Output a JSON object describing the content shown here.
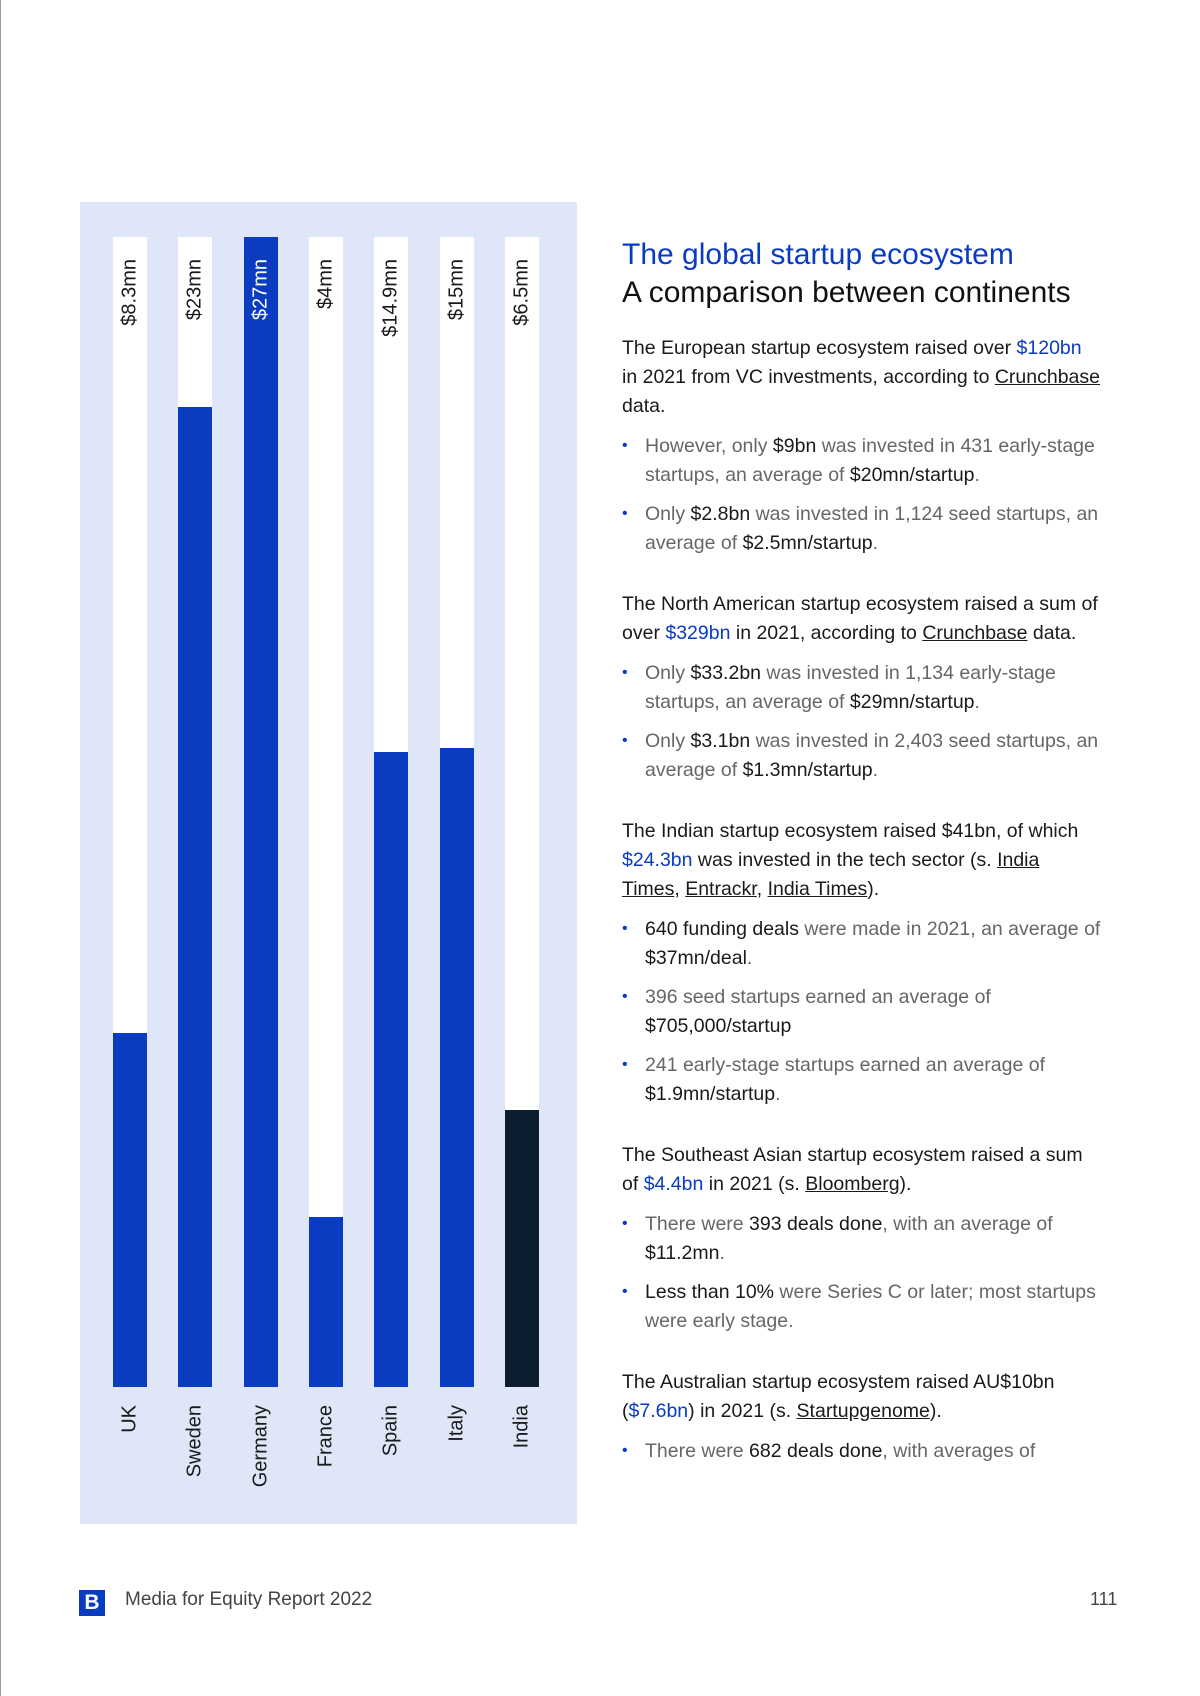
{
  "chart_data": {
    "type": "bar",
    "orientation": "vertical",
    "categories": [
      "UK",
      "Sweden",
      "Germany",
      "France",
      "Spain",
      "Italy",
      "India"
    ],
    "values": [
      8.3,
      23,
      27,
      4,
      14.9,
      15,
      6.5
    ],
    "value_labels": [
      "$8.3mn",
      "$23mn",
      "$27mn",
      "$4mn",
      "$14.9mn",
      "$15mn",
      "$6.5mn"
    ],
    "unit": "$mn",
    "ylim": [
      0,
      27
    ],
    "grid": false,
    "colors": {
      "default": "#0a3cc2",
      "highlight": "#0c1e30",
      "track": "#ffffff",
      "background": "#dfe6f7"
    },
    "highlight_category": "India"
  },
  "text": {
    "title": "The global startup ecosystem",
    "subtitle": "A comparison between continents",
    "sections": [
      {
        "para": [
          {
            "t": "The European startup ecosystem raised over ",
            "s": ""
          },
          {
            "t": "$120bn",
            "s": "blue"
          },
          {
            "t": "  in 2021 from VC investments, according to ",
            "s": ""
          },
          {
            "t": "Crunchbase",
            "s": "link"
          },
          {
            "t": " data.",
            "s": ""
          }
        ],
        "bullets": [
          [
            {
              "t": "However, only ",
              "s": ""
            },
            {
              "t": "$9bn",
              "s": "strong"
            },
            {
              "t": " was invested in 431 early-stage startups, an average of ",
              "s": ""
            },
            {
              "t": "$20mn/startup",
              "s": "strong"
            },
            {
              "t": ".",
              "s": ""
            }
          ],
          [
            {
              "t": "Only ",
              "s": ""
            },
            {
              "t": "$2.8bn",
              "s": "strong"
            },
            {
              "t": " was invested in 1,124 seed startups, an average of ",
              "s": ""
            },
            {
              "t": "$2.5mn/startup",
              "s": "strong"
            },
            {
              "t": ".",
              "s": ""
            }
          ]
        ]
      },
      {
        "para": [
          {
            "t": "The North American startup ecosystem raised a sum of over ",
            "s": ""
          },
          {
            "t": "$329bn",
            "s": "blue"
          },
          {
            "t": " in 2021, according to ",
            "s": ""
          },
          {
            "t": "Crunchbase",
            "s": "link"
          },
          {
            "t": " data.",
            "s": ""
          }
        ],
        "bullets": [
          [
            {
              "t": "Only ",
              "s": ""
            },
            {
              "t": "$33.2bn",
              "s": "strong"
            },
            {
              "t": " was invested in 1,134 early-stage startups, an average of ",
              "s": ""
            },
            {
              "t": "$29mn/startup",
              "s": "strong"
            },
            {
              "t": ".",
              "s": ""
            }
          ],
          [
            {
              "t": "Only ",
              "s": ""
            },
            {
              "t": "$3.1bn",
              "s": "strong"
            },
            {
              "t": " was invested in 2,403 seed startups, an average of ",
              "s": ""
            },
            {
              "t": "$1.3mn/startup",
              "s": "strong"
            },
            {
              "t": ".",
              "s": ""
            }
          ]
        ]
      },
      {
        "para": [
          {
            "t": "The Indian startup ecosystem raised $41bn, of which ",
            "s": ""
          },
          {
            "t": "$24.3bn",
            "s": "blue"
          },
          {
            "t": " was invested in the tech sector (s. ",
            "s": ""
          },
          {
            "t": "India Times",
            "s": "link"
          },
          {
            "t": ", ",
            "s": ""
          },
          {
            "t": "Entrackr",
            "s": "link"
          },
          {
            "t": ", ",
            "s": ""
          },
          {
            "t": "India Times",
            "s": "link"
          },
          {
            "t": ").",
            "s": ""
          }
        ],
        "bullets": [
          [
            {
              "t": "640 funding deals",
              "s": "strong"
            },
            {
              "t": " were made in 2021, an average of ",
              "s": ""
            },
            {
              "t": "$37mn/deal",
              "s": "strong"
            },
            {
              "t": ".",
              "s": ""
            }
          ],
          [
            {
              "t": "396 seed startups earned an average of ",
              "s": ""
            },
            {
              "t": "$705,000/startup",
              "s": "strong"
            }
          ],
          [
            {
              "t": "241 early-stage startups earned an average of ",
              "s": ""
            },
            {
              "t": "$1.9mn/startup",
              "s": "strong"
            },
            {
              "t": ".",
              "s": ""
            }
          ]
        ]
      },
      {
        "para": [
          {
            "t": "The Southeast Asian startup ecosystem raised a sum of ",
            "s": ""
          },
          {
            "t": "$4.4bn",
            "s": "blue"
          },
          {
            "t": " in 2021 (s. ",
            "s": ""
          },
          {
            "t": "Bloomberg",
            "s": "link"
          },
          {
            "t": ").",
            "s": ""
          }
        ],
        "bullets": [
          [
            {
              "t": "There were ",
              "s": ""
            },
            {
              "t": "393 deals done",
              "s": "strong"
            },
            {
              "t": ", with an average of ",
              "s": ""
            },
            {
              "t": "$11.2mn",
              "s": "strong"
            },
            {
              "t": ".",
              "s": ""
            }
          ],
          [
            {
              "t": "Less than 10%",
              "s": "strong"
            },
            {
              "t": " were Series C or later; most startups were early stage.",
              "s": ""
            }
          ]
        ]
      },
      {
        "para": [
          {
            "t": "The Australian startup ecosystem raised AU$10bn (",
            "s": ""
          },
          {
            "t": "$7.6bn",
            "s": "blue"
          },
          {
            "t": ") in 2021 (s. ",
            "s": ""
          },
          {
            "t": "Startupgenome",
            "s": "link"
          },
          {
            "t": ").",
            "s": ""
          }
        ],
        "bullets": [
          [
            {
              "t": "There were ",
              "s": ""
            },
            {
              "t": "682 deals done",
              "s": "strong"
            },
            {
              "t": ", with averages of",
              "s": ""
            }
          ]
        ]
      }
    ]
  },
  "footer": {
    "logo_letter": "B",
    "report_title": "Media for Equity Report 2022",
    "page_number": "111"
  }
}
